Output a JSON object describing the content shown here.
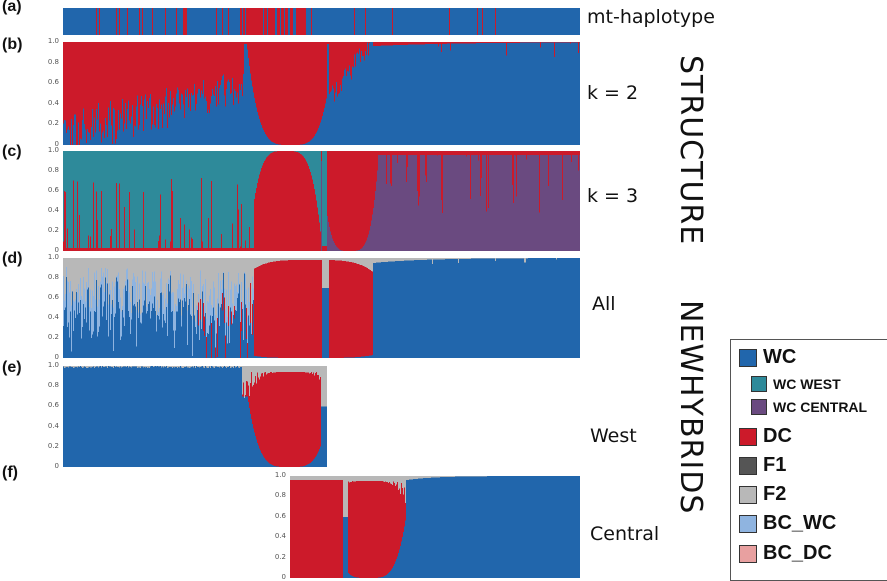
{
  "chart_data": [
    {
      "type": "bar",
      "id": "a",
      "panel_label": "(a)",
      "row_label": "mt-haplotype",
      "description": "mitochondrial haplotype assignment per individual (blue = WC, red = DC)",
      "series": [
        {
          "name": "WC",
          "color": "#2166ac"
        },
        {
          "name": "DC",
          "color": "#cc1a2a"
        }
      ]
    },
    {
      "type": "bar",
      "id": "b",
      "panel_label": "(b)",
      "row_label": "k = 2",
      "ylim": [
        0,
        1.0
      ],
      "yticks": [
        "1.0",
        "0.8",
        "0.6",
        "0.4",
        "0.2",
        "0"
      ],
      "series": [
        {
          "name": "WC",
          "color": "#2166ac"
        },
        {
          "name": "DC",
          "color": "#cc1a2a"
        }
      ]
    },
    {
      "type": "bar",
      "id": "c",
      "panel_label": "(c)",
      "row_label": "k = 3",
      "ylim": [
        0,
        1.0
      ],
      "yticks": [
        "1.0",
        "0.8",
        "0.6",
        "0.4",
        "0.2",
        "0"
      ],
      "series": [
        {
          "name": "WC WEST",
          "color": "#2e8a9a"
        },
        {
          "name": "DC",
          "color": "#cc1a2a"
        },
        {
          "name": "WC CENTRAL",
          "color": "#6a4a80"
        }
      ]
    },
    {
      "type": "bar",
      "id": "d",
      "panel_label": "(d)",
      "row_label": "All",
      "ylim": [
        0,
        1.0
      ],
      "yticks": [
        "1.0",
        "0.8",
        "0.6",
        "0.4",
        "0.2",
        "0"
      ],
      "series": [
        {
          "name": "WC",
          "color": "#2166ac"
        },
        {
          "name": "F2",
          "color": "#b8b8b8"
        },
        {
          "name": "BC_WC",
          "color": "#8fb4e0"
        },
        {
          "name": "DC",
          "color": "#cc1a2a"
        }
      ]
    },
    {
      "type": "bar",
      "id": "e",
      "panel_label": "(e)",
      "row_label": "West",
      "ylim": [
        0,
        1.0
      ],
      "yticks": [
        "1.0",
        "0.8",
        "0.6",
        "0.4",
        "0.2",
        "0"
      ],
      "series": [
        {
          "name": "WC",
          "color": "#2166ac"
        },
        {
          "name": "F2",
          "color": "#b8b8b8"
        },
        {
          "name": "DC",
          "color": "#cc1a2a"
        }
      ]
    },
    {
      "type": "bar",
      "id": "f",
      "panel_label": "(f)",
      "row_label": "Central",
      "ylim": [
        0,
        1.0
      ],
      "yticks": [
        "1.0",
        "0.8",
        "0.6",
        "0.4",
        "0.2",
        "0"
      ],
      "series": [
        {
          "name": "WC",
          "color": "#2166ac"
        },
        {
          "name": "F2",
          "color": "#b8b8b8"
        },
        {
          "name": "DC",
          "color": "#cc1a2a"
        }
      ]
    }
  ],
  "group_labels": {
    "structure": "STRUCTURE",
    "newhybrids": "NEWHYBRIDS"
  },
  "legend": {
    "placement": "bottom-right",
    "items": [
      {
        "label": "WC",
        "color": "#2166ac",
        "indent": false
      },
      {
        "label": "WC WEST",
        "color": "#2e8a9a",
        "indent": true
      },
      {
        "label": "WC CENTRAL",
        "color": "#6a4a80",
        "indent": true
      },
      {
        "label": "DC",
        "color": "#cc1a2a",
        "indent": false
      },
      {
        "label": "F1",
        "color": "#555555",
        "indent": false
      },
      {
        "label": "F2",
        "color": "#b8b8b8",
        "indent": false
      },
      {
        "label": "BC_WC",
        "color": "#8fb4e0",
        "indent": false
      },
      {
        "label": "BC_DC",
        "color": "#e8a0a0",
        "indent": false
      }
    ]
  }
}
